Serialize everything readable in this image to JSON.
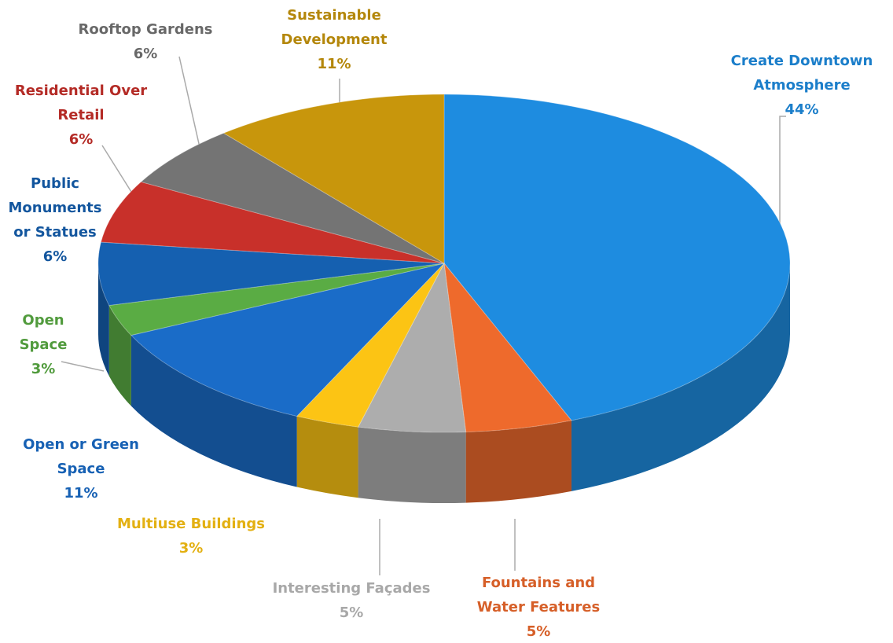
{
  "chart_data": {
    "type": "pie",
    "categories": [
      "Create Downtown Atmosphere",
      "Fountains and Water Features",
      "Interesting Façades",
      "Multiuse Buildings",
      "Open or Green Space",
      "Open Space",
      "Public Monuments or Statues",
      "Residential Over Retail",
      "Rooftop Gardens",
      "Sustainable Development"
    ],
    "values": [
      44,
      5,
      5,
      3,
      11,
      3,
      6,
      6,
      6,
      11
    ],
    "value_labels": [
      "44%",
      "5%",
      "5%",
      "3%",
      "11%",
      "3%",
      "6%",
      "6%",
      "6%",
      "11%"
    ],
    "colors": [
      "#1e8ce0",
      "#ee6a2c",
      "#adadad",
      "#fcc414",
      "#1a6cc8",
      "#5aac44",
      "#1560b0",
      "#c8302a",
      "#747474",
      "#c8960c"
    ]
  }
}
